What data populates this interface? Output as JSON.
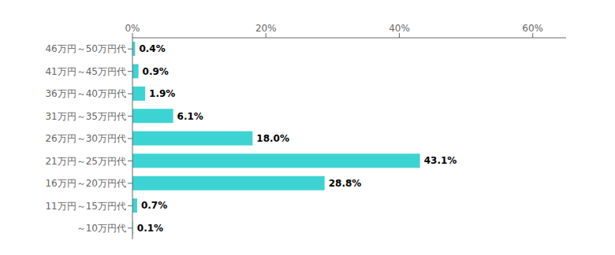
{
  "chart_data": {
    "type": "bar",
    "orientation": "horizontal",
    "categories": [
      "46万円～50万円代",
      "41万円～45万円代",
      "36万円～40万円代",
      "31万円～35万円代",
      "26万円～30万円代",
      "21万円～25万円代",
      "16万円～20万円代",
      "11万円～15万円代",
      "～10万円代"
    ],
    "values": [
      0.4,
      0.9,
      1.9,
      6.1,
      18.0,
      43.1,
      28.8,
      0.7,
      0.1
    ],
    "value_labels": [
      "0.4%",
      "0.9%",
      "1.9%",
      "6.1%",
      "18.0%",
      "43.1%",
      "28.8%",
      "0.7%",
      "0.1%"
    ],
    "data_labels": true,
    "color": "#3DD3D3",
    "xlim": [
      0,
      65
    ],
    "xticks": [
      {
        "value": 0,
        "label": "0%"
      },
      {
        "value": 20,
        "label": "20%"
      },
      {
        "value": 40,
        "label": "40%"
      },
      {
        "value": 60,
        "label": "60%"
      }
    ],
    "grid": false
  }
}
